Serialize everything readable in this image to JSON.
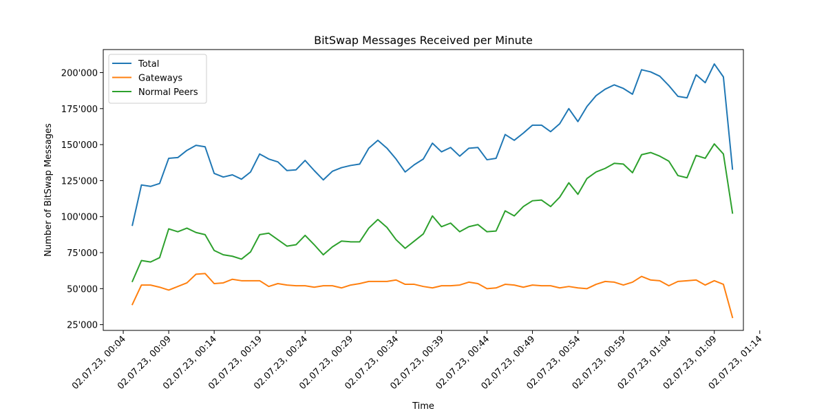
{
  "chart_data": {
    "type": "line",
    "title": "BitSwap Messages Received per Minute",
    "xlabel": "Time",
    "ylabel": "Number of BitSwap Messages",
    "x": [
      "00:05",
      "00:06",
      "00:07",
      "00:08",
      "00:09",
      "00:10",
      "00:11",
      "00:12",
      "00:13",
      "00:14",
      "00:15",
      "00:16",
      "00:17",
      "00:18",
      "00:19",
      "00:20",
      "00:21",
      "00:22",
      "00:23",
      "00:24",
      "00:25",
      "00:26",
      "00:27",
      "00:28",
      "00:29",
      "00:30",
      "00:31",
      "00:32",
      "00:33",
      "00:34",
      "00:35",
      "00:36",
      "00:37",
      "00:38",
      "00:39",
      "00:40",
      "00:41",
      "00:42",
      "00:43",
      "00:44",
      "00:45",
      "00:46",
      "00:47",
      "00:48",
      "00:49",
      "00:50",
      "00:51",
      "00:52",
      "00:53",
      "00:54",
      "00:55",
      "00:56",
      "00:57",
      "00:58",
      "00:59",
      "01:00",
      "01:01",
      "01:02",
      "01:03",
      "01:04",
      "01:05",
      "01:06",
      "01:07",
      "01:08",
      "01:09",
      "01:10",
      "01:11"
    ],
    "series": [
      {
        "name": "Total",
        "color": "#1f77b4",
        "values": [
          94000,
          122000,
          121000,
          123000,
          140500,
          141000,
          146000,
          149500,
          148500,
          130000,
          127500,
          129000,
          126000,
          131000,
          143500,
          140000,
          138000,
          132000,
          132500,
          139000,
          132000,
          125500,
          131500,
          134000,
          135500,
          136500,
          147500,
          153000,
          147500,
          140000,
          131000,
          136000,
          140000,
          151000,
          145000,
          148000,
          142000,
          147500,
          148000,
          139500,
          140500,
          157000,
          153000,
          158000,
          163500,
          163500,
          159000,
          164500,
          175000,
          166000,
          176500,
          184000,
          188500,
          191500,
          189000,
          185000,
          202000,
          200500,
          197500,
          191000,
          183500,
          182500,
          198500,
          193000,
          206000,
          197000,
          133000
        ]
      },
      {
        "name": "Gateways",
        "color": "#ff7f0e",
        "values": [
          39000,
          52500,
          52500,
          51000,
          49000,
          51500,
          54000,
          60000,
          60500,
          53500,
          54000,
          56500,
          55500,
          55500,
          55500,
          51500,
          53500,
          52500,
          52000,
          52000,
          51000,
          52000,
          52000,
          50500,
          52500,
          53500,
          55000,
          55000,
          55000,
          56000,
          53000,
          53000,
          51500,
          50500,
          52000,
          52000,
          52500,
          54500,
          53500,
          50000,
          50500,
          53000,
          52500,
          51000,
          52500,
          52000,
          52000,
          50500,
          51500,
          50500,
          50000,
          53000,
          55000,
          54500,
          52500,
          54500,
          58500,
          56000,
          55500,
          52000,
          55000,
          55500,
          56000,
          52500,
          55500,
          53000,
          30000
        ]
      },
      {
        "name": "Normal Peers",
        "color": "#2ca02c",
        "values": [
          55000,
          69500,
          68500,
          71500,
          91500,
          89500,
          92000,
          89000,
          87500,
          76500,
          73500,
          72500,
          70500,
          75500,
          87500,
          88500,
          84000,
          79500,
          80500,
          87000,
          80500,
          73500,
          79000,
          83000,
          82500,
          82500,
          92000,
          98000,
          92500,
          84000,
          78000,
          83000,
          88000,
          100500,
          93000,
          95500,
          89500,
          93000,
          94500,
          89500,
          90000,
          104000,
          100500,
          107000,
          111000,
          111500,
          107000,
          113500,
          123500,
          115500,
          126500,
          131000,
          133500,
          137000,
          136500,
          130500,
          143000,
          144500,
          142000,
          138500,
          128500,
          127000,
          142500,
          140500,
          150500,
          143500,
          102500
        ]
      }
    ],
    "xticks": [
      "02.07.23, 00:04",
      "02.07.23, 00:09",
      "02.07.23, 00:14",
      "02.07.23, 00:19",
      "02.07.23, 00:24",
      "02.07.23, 00:29",
      "02.07.23, 00:34",
      "02.07.23, 00:39",
      "02.07.23, 00:44",
      "02.07.23, 00:49",
      "02.07.23, 00:54",
      "02.07.23, 00:59",
      "02.07.23, 01:04",
      "02.07.23, 01:09",
      "02.07.23, 01:14"
    ],
    "yticks": [
      25000,
      50000,
      75000,
      100000,
      125000,
      150000,
      175000,
      200000
    ],
    "ytick_labels": [
      "25'000",
      "50'000",
      "75'000",
      "100'000",
      "125'000",
      "150'000",
      "175'000",
      "200'000"
    ],
    "xlim": [
      "00:01.8",
      "01:12.2"
    ],
    "ylim": [
      21000,
      216000
    ],
    "grid": false,
    "legend_position": "upper left"
  }
}
